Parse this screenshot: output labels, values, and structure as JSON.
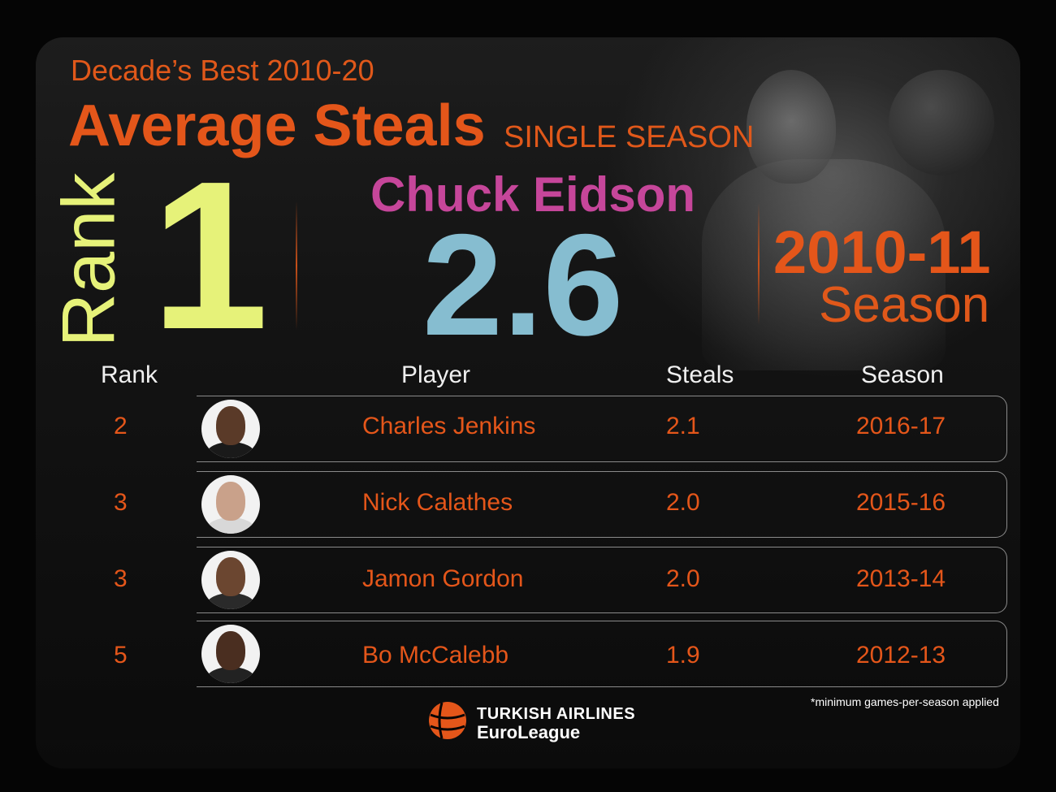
{
  "header": {
    "subtitle": "Decade’s Best 2010-20",
    "title": "Average Steals",
    "title_tag": "SINGLE SEASON"
  },
  "leader": {
    "rank_label": "Rank",
    "rank": "1",
    "player": "Chuck Eidson",
    "value": "2.6",
    "season": "2010-11",
    "season_label": "Season"
  },
  "table": {
    "headers": {
      "rank": "Rank",
      "player": "Player",
      "steals": "Steals",
      "season": "Season"
    },
    "rows": [
      {
        "rank": "2",
        "player": "Charles Jenkins",
        "steals": "2.1",
        "season": "2016-17"
      },
      {
        "rank": "3",
        "player": "Nick Calathes",
        "steals": "2.0",
        "season": "2015-16"
      },
      {
        "rank": "3",
        "player": "Jamon Gordon",
        "steals": "2.0",
        "season": "2013-14"
      },
      {
        "rank": "5",
        "player": "Bo McCalebb",
        "steals": "1.9",
        "season": "2012-13"
      }
    ]
  },
  "footnote": "*minimum games-per-season applied",
  "logo": {
    "line1": "TURKISH AIRLINES",
    "line2": "EuroLeague"
  },
  "colors": {
    "accent_orange": "#e4561a",
    "rank_yellow": "#e6f279",
    "player_magenta": "#c6469a",
    "stat_blue": "#86bdd0",
    "background": "#050505"
  }
}
